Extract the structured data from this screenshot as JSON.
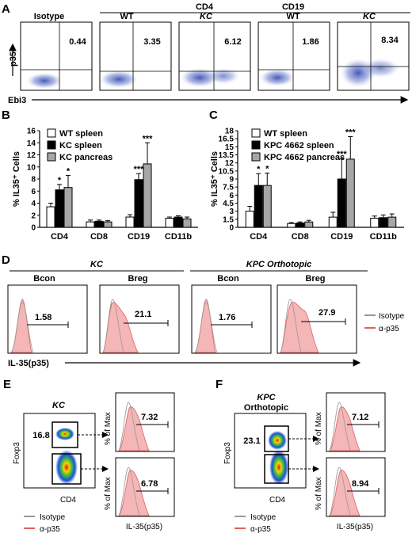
{
  "panels": {
    "A": {
      "letter": "A",
      "groups": [
        "CD4",
        "CD19"
      ],
      "labels": {
        "isotype": "Isotype",
        "wt": "WT",
        "kc": "KC"
      },
      "values": [
        "0.44",
        "3.35",
        "6.12",
        "1.86",
        "8.34"
      ],
      "y_axis": "p35",
      "x_axis": "Ebi3"
    },
    "B": {
      "letter": "B",
      "ylabel": "% IL35⁺ Cells"
    },
    "C": {
      "letter": "C",
      "ylabel": "% IL35⁺ Cells"
    },
    "D": {
      "letter": "D",
      "groups": [
        "KC",
        "KPC Orthotopic"
      ],
      "subs": [
        "Bcon",
        "Breg",
        "Bcon",
        "Breg"
      ],
      "values": [
        "1.58",
        "21.1",
        "1.76",
        "27.9"
      ],
      "x_axis": "IL-35(p35)",
      "legend": [
        "Isotype",
        "α-p35"
      ]
    },
    "E": {
      "letter": "E",
      "title": "KC",
      "dot_values": [
        "16.8"
      ],
      "hist_values": [
        "7.32",
        "6.78"
      ],
      "y_axis": "Foxp3",
      "x_axis": "CD4",
      "hist_y": "% of Max",
      "hist_x": "IL-35(p35)",
      "legend": [
        "Isotype",
        "α-p35"
      ]
    },
    "F": {
      "letter": "F",
      "title": "KPC",
      "subtitle": "Orthotopic",
      "dot_values": [
        "23.1"
      ],
      "hist_values": [
        "7.12",
        "8.94"
      ],
      "y_axis": "Foxp3",
      "x_axis": "CD4",
      "hist_y": "% of Max",
      "hist_x": "IL-35(p35)",
      "legend": [
        "Isotype",
        "α-p35"
      ]
    }
  },
  "chart_data": [
    {
      "type": "bar",
      "panel": "B",
      "categories": [
        "CD4",
        "CD8",
        "CD19",
        "CD11b"
      ],
      "series": [
        {
          "name": "WT spleen",
          "color": "#ffffff",
          "values": [
            3.4,
            0.9,
            1.7,
            1.5
          ],
          "errors": [
            0.6,
            0.3,
            0.4,
            0.2
          ],
          "stars": [
            "",
            "",
            "",
            ""
          ]
        },
        {
          "name": "KC spleen",
          "color": "#000000",
          "values": [
            6.2,
            1.0,
            7.9,
            1.7
          ],
          "errors": [
            0.9,
            0.2,
            1.0,
            0.2
          ],
          "stars": [
            "*",
            "",
            "***",
            ""
          ]
        },
        {
          "name": "KC pancreas",
          "color": "#a6a6a6",
          "values": [
            6.6,
            0.9,
            10.5,
            1.4
          ],
          "errors": [
            2.0,
            0.2,
            3.5,
            0.3
          ],
          "stars": [
            "*",
            "",
            "***",
            ""
          ]
        }
      ],
      "yticks": [
        0,
        2,
        4,
        6,
        8,
        10,
        12,
        14,
        16
      ],
      "ylim": [
        0,
        16
      ],
      "ylabel": "% IL35⁺ Cells"
    },
    {
      "type": "bar",
      "panel": "C",
      "categories": [
        "CD4",
        "CD8",
        "CD19",
        "CD11b"
      ],
      "series": [
        {
          "name": "WT spleen",
          "color": "#ffffff",
          "values": [
            3.0,
            0.7,
            1.9,
            1.7
          ],
          "errors": [
            0.9,
            0.2,
            0.9,
            0.4
          ],
          "stars": [
            "",
            "",
            "",
            ""
          ]
        },
        {
          "name": "KPC 4662 spleen",
          "color": "#000000",
          "values": [
            7.8,
            0.8,
            9.0,
            1.8
          ],
          "errors": [
            2.2,
            0.2,
            3.8,
            0.5
          ],
          "stars": [
            "*",
            "",
            "***",
            ""
          ]
        },
        {
          "name": "KPC 4662 pancreas",
          "color": "#a6a6a6",
          "values": [
            7.8,
            1.0,
            12.7,
            1.9
          ],
          "errors": [
            2.3,
            0.3,
            4.2,
            0.6
          ],
          "stars": [
            "*",
            "",
            "***",
            ""
          ]
        }
      ],
      "yticks": [
        0,
        1.5,
        3,
        4.5,
        6,
        7.5,
        9,
        10.5,
        12,
        13.5,
        15,
        16.5,
        18
      ],
      "ylim": [
        0,
        18
      ],
      "ylabel": "% IL35⁺ Cells"
    }
  ]
}
